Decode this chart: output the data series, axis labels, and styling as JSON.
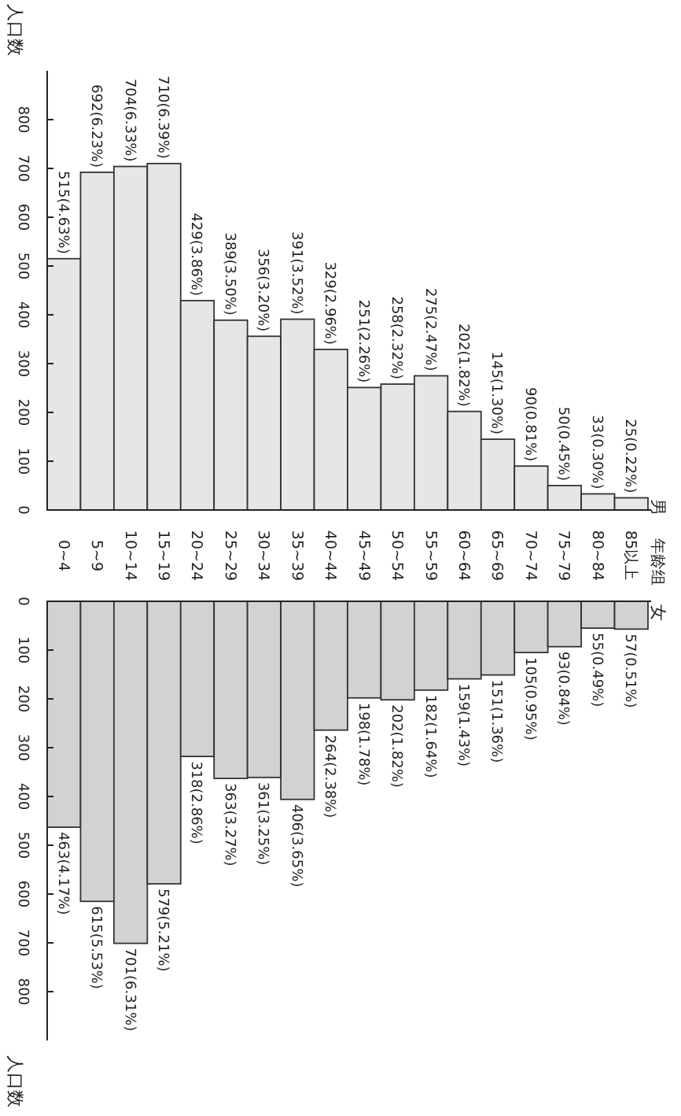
{
  "chart_data": [
    {
      "type": "bar",
      "title": "男",
      "annotations": [
        "年龄组"
      ],
      "ylabel": "人口数",
      "categories": [
        "0~4",
        "5~9",
        "10~14",
        "15~19",
        "20~24",
        "25~29",
        "30~34",
        "35~39",
        "40~44",
        "45~49",
        "50~54",
        "55~59",
        "60~64",
        "65~69",
        "70~74",
        "75~79",
        "80~84",
        "85以上"
      ],
      "series": [
        {
          "color": "#e6e6e6",
          "values": [
            515,
            692,
            704,
            710,
            429,
            389,
            356,
            391,
            329,
            251,
            258,
            275,
            202,
            145,
            90,
            50,
            33,
            25
          ],
          "value_labels": [
            "515(4.63%)",
            "692(6.23%)",
            "704(6.33%)",
            "710(6.39%)",
            "429(3.86%)",
            "389(3.50%)",
            "356(3.20%)",
            "391(3.52%)",
            "329(2.96%)",
            "251(2.26%)",
            "258(2.32%)",
            "275(2.47%)",
            "202(1.82%)",
            "145(1.30%)",
            "90(0.81%)",
            "50(0.45%)",
            "33(0.30%)",
            "25(0.22%)"
          ]
        }
      ],
      "ylim": [
        0,
        900
      ],
      "yticks": [
        0,
        100,
        200,
        300,
        400,
        500,
        600,
        700,
        800
      ]
    },
    {
      "type": "bar",
      "title": "女",
      "ylabel": "人口数",
      "categories": [
        null,
        null,
        null,
        null,
        null,
        null,
        null,
        null,
        null,
        null,
        null,
        null,
        null,
        null,
        null,
        null,
        null,
        null
      ],
      "series": [
        {
          "color": "#d2d2d2",
          "values": [
            463,
            615,
            701,
            579,
            318,
            363,
            361,
            406,
            264,
            198,
            202,
            182,
            159,
            151,
            105,
            93,
            55,
            57
          ],
          "value_labels": [
            "463(4.17%)",
            "615(5.53%)",
            "701(6.31%)",
            "579(5.21%)",
            "318(2.86%)",
            "363(3.27%)",
            "361(3.25%)",
            "406(3.65%)",
            "264(2.38%)",
            "198(1.78%)",
            "202(1.82%)",
            "182(1.64%)",
            "159(1.43%)",
            "151(1.36%)",
            "105(0.95%)",
            "93(0.84%)",
            "55(0.49%)",
            "57(0.51%)"
          ]
        }
      ],
      "ylim": [
        900,
        0
      ],
      "yticks": [
        0,
        100,
        200,
        300,
        400,
        500,
        600,
        700,
        800
      ],
      "tick_labels": "y"
    }
  ]
}
